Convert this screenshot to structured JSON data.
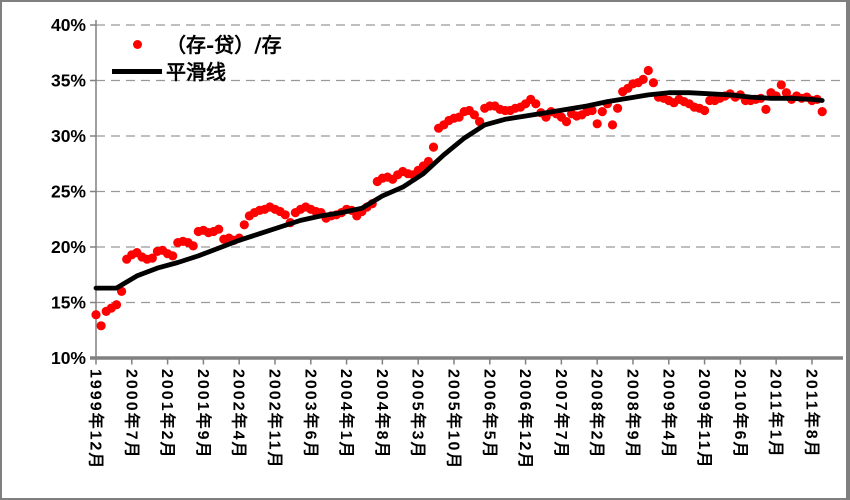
{
  "colors": {
    "scatter": "#FF0000",
    "smooth_line": "#000000",
    "gridline": "#999999",
    "axis": "#808080",
    "background": "#FFFFFF",
    "frame_border": "#7F7F7F"
  },
  "legend": {
    "scatter_label": "（存-贷）/存",
    "line_label": "平滑线"
  },
  "chart_data": {
    "type": "scatter",
    "title": "",
    "xlabel": "",
    "ylabel": "",
    "grid": {
      "show": true,
      "style": "dashed",
      "color": "#999999"
    },
    "legend_position": "top-left-inside",
    "y_axis": {
      "min": 10,
      "max": 40,
      "step": 5,
      "tick_labels": [
        "10%",
        "15%",
        "20%",
        "25%",
        "30%",
        "35%",
        "40%"
      ]
    },
    "x_axis": {
      "start_month": "1999年12月",
      "end_month": "2011年10月",
      "months_total": 143,
      "tick_every_months": 7,
      "tick_labels": [
        "1999年12月",
        "2000年7月",
        "2001年2月",
        "2001年9月",
        "2002年4月",
        "2002年11月",
        "2003年6月",
        "2004年1月",
        "2004年8月",
        "2005年3月",
        "2005年10月",
        "2006年5月",
        "2006年12月",
        "2007年7月",
        "2008年2月",
        "2008年9月",
        "2009年4月",
        "2009年11月",
        "2010年6月",
        "2011年1月",
        "2011年8月"
      ]
    },
    "series": [
      {
        "name": "（存-贷）/存",
        "type": "scatter",
        "color": "#FF0000",
        "unit": "%",
        "values": [
          13.9,
          12.9,
          14.2,
          14.5,
          14.8,
          16.0,
          18.9,
          19.3,
          19.5,
          19.1,
          18.9,
          19.0,
          19.6,
          19.7,
          19.4,
          19.2,
          20.4,
          20.5,
          20.4,
          20.1,
          21.4,
          21.5,
          21.3,
          21.4,
          21.6,
          20.7,
          20.8,
          20.6,
          20.8,
          22.0,
          22.8,
          23.1,
          23.3,
          23.4,
          23.6,
          23.4,
          23.2,
          22.9,
          22.2,
          23.1,
          23.4,
          23.6,
          23.4,
          23.2,
          23.1,
          22.6,
          22.8,
          22.9,
          23.1,
          23.4,
          23.3,
          22.8,
          23.2,
          23.6,
          23.9,
          25.9,
          26.2,
          26.3,
          26.1,
          26.5,
          26.8,
          26.6,
          26.5,
          26.9,
          27.3,
          27.7,
          29.0,
          30.7,
          31.0,
          31.4,
          31.6,
          31.7,
          32.2,
          32.3,
          31.9,
          31.3,
          32.5,
          32.7,
          32.7,
          32.4,
          32.3,
          32.3,
          32.5,
          32.6,
          32.9,
          33.3,
          32.9,
          32.1,
          31.7,
          32.2,
          32.0,
          31.7,
          31.3,
          32.0,
          31.8,
          31.9,
          32.2,
          32.3,
          31.1,
          32.2,
          32.9,
          31.0,
          32.5,
          34.0,
          34.3,
          34.7,
          34.8,
          35.1,
          35.9,
          34.8,
          33.5,
          33.4,
          33.2,
          33.0,
          33.3,
          33.1,
          32.9,
          32.6,
          32.5,
          32.3,
          33.2,
          33.2,
          33.4,
          33.6,
          33.8,
          33.5,
          33.7,
          33.2,
          33.2,
          33.3,
          33.4,
          32.4,
          33.9,
          33.6,
          34.6,
          33.9,
          33.3,
          33.6,
          33.4,
          33.5,
          33.2,
          33.3,
          32.2
        ]
      },
      {
        "name": "平滑线",
        "type": "line",
        "color": "#000000",
        "unit": "%",
        "anchors": [
          [
            0,
            16.3
          ],
          [
            4,
            16.3
          ],
          [
            8,
            17.4
          ],
          [
            12,
            18.1
          ],
          [
            16,
            18.6
          ],
          [
            20,
            19.2
          ],
          [
            24,
            19.9
          ],
          [
            28,
            20.6
          ],
          [
            32,
            21.2
          ],
          [
            36,
            21.8
          ],
          [
            40,
            22.4
          ],
          [
            44,
            22.8
          ],
          [
            48,
            23.1
          ],
          [
            52,
            23.5
          ],
          [
            56,
            24.6
          ],
          [
            60,
            25.4
          ],
          [
            64,
            26.6
          ],
          [
            68,
            28.3
          ],
          [
            72,
            29.8
          ],
          [
            76,
            31.0
          ],
          [
            80,
            31.5
          ],
          [
            84,
            31.8
          ],
          [
            88,
            32.1
          ],
          [
            92,
            32.4
          ],
          [
            96,
            32.7
          ],
          [
            100,
            33.1
          ],
          [
            104,
            33.4
          ],
          [
            108,
            33.7
          ],
          [
            112,
            33.9
          ],
          [
            116,
            33.9
          ],
          [
            120,
            33.8
          ],
          [
            124,
            33.7
          ],
          [
            128,
            33.5
          ],
          [
            132,
            33.4
          ],
          [
            136,
            33.4
          ],
          [
            140,
            33.3
          ],
          [
            142,
            33.2
          ]
        ]
      }
    ]
  }
}
